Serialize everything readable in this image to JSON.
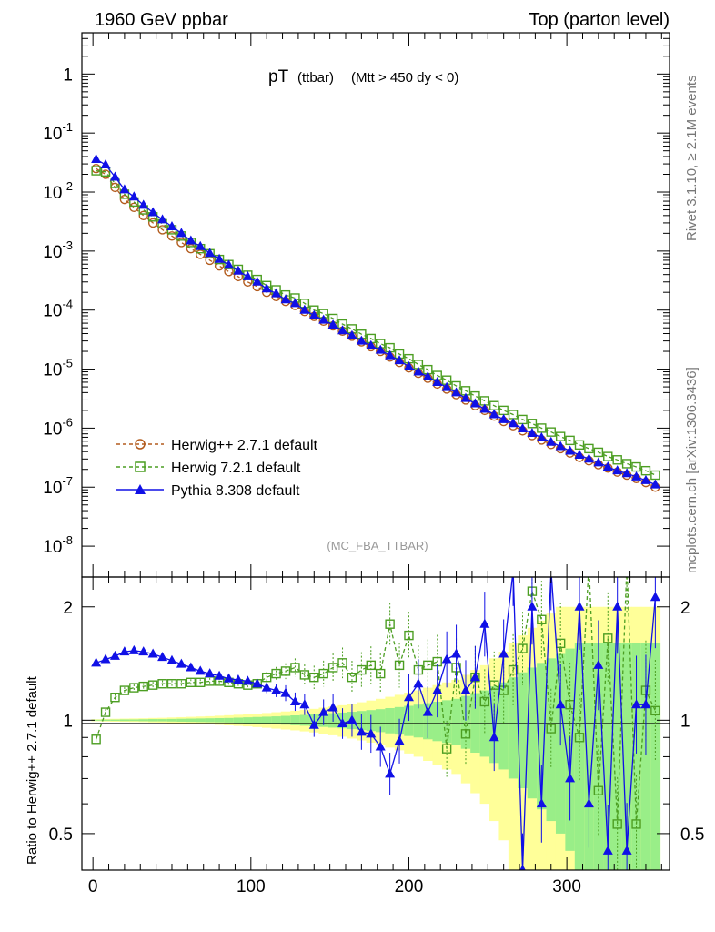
{
  "header": {
    "left": "1960 GeV ppbar",
    "right": "Top (parton level)"
  },
  "side_labels": {
    "rivet": "Rivet 3.1.10, ≥ 2.1M events",
    "mcplots": "mcplots.cern.ch [arXiv:1306.3436]"
  },
  "chart_data": [
    {
      "type": "scatter",
      "title_main": "pT",
      "title_sub": "(ttbar)",
      "title_cut": "(Mtt > 450 dy < 0)",
      "analysis": "(MC_FBA_TTBAR)",
      "xlabel": "",
      "ylabel": "",
      "yscale": "log",
      "ylim": [
        3e-09,
        5
      ],
      "xlim": [
        -7,
        365
      ],
      "ytick_labels": [
        "1",
        "10^-1",
        "10^-2",
        "10^-3",
        "10^-4",
        "10^-5",
        "10^-6",
        "10^-7",
        "10^-8"
      ],
      "legend": [
        {
          "name": "Herwig++ 2.7.1 default",
          "color": "#b35c1e",
          "marker": "circle",
          "style": "dashed"
        },
        {
          "name": "Herwig 7.2.1 default",
          "color": "#4c9e22",
          "marker": "square",
          "style": "dashed"
        },
        {
          "name": "Pythia 8.308 default",
          "color": "#1010e6",
          "marker": "triangle",
          "style": "solid"
        }
      ],
      "series": [
        {
          "name": "Herwig++ 2.7.1 default",
          "x": [
            2,
            8,
            14,
            20,
            26,
            32,
            38,
            44,
            50,
            56,
            62,
            68,
            74,
            80,
            86,
            92,
            98,
            104,
            110,
            116,
            122,
            128,
            134,
            140,
            146,
            152,
            158,
            164,
            170,
            176,
            182,
            188,
            194,
            200,
            206,
            212,
            218,
            224,
            230,
            236,
            242,
            248,
            254,
            260,
            266,
            272,
            278,
            284,
            290,
            296,
            302,
            308,
            314,
            320,
            326,
            332,
            338,
            344,
            350,
            356
          ],
          "y": [
            0.025,
            0.02,
            0.012,
            0.0075,
            0.0055,
            0.004,
            0.003,
            0.0023,
            0.0018,
            0.0014,
            0.0011,
            0.00088,
            0.0007,
            0.00056,
            0.00045,
            0.00037,
            0.0003,
            0.00025,
            0.0002,
            0.00017,
            0.00014,
            0.00012,
            9.5e-05,
            7.8e-05,
            6.5e-05,
            5.4e-05,
            4.4e-05,
            3.6e-05,
            2.9e-05,
            2.4e-05,
            2e-05,
            1.6e-05,
            1.3e-05,
            1.05e-05,
            8.5e-06,
            7e-06,
            5.6e-06,
            4.6e-06,
            3.7e-06,
            3e-06,
            2.4e-06,
            2e-06,
            1.6e-06,
            1.3e-06,
            1.1e-06,
            9e-07,
            7.5e-07,
            6.3e-07,
            5.3e-07,
            4.5e-07,
            3.8e-07,
            3.2e-07,
            2.8e-07,
            2.4e-07,
            2.1e-07,
            1.8e-07,
            1.6e-07,
            1.4e-07,
            1.2e-07,
            1e-07
          ]
        },
        {
          "name": "Herwig 7.2.1 default",
          "x": [
            2,
            8,
            14,
            20,
            26,
            32,
            38,
            44,
            50,
            56,
            62,
            68,
            74,
            80,
            86,
            92,
            98,
            104,
            110,
            116,
            122,
            128,
            134,
            140,
            146,
            152,
            158,
            164,
            170,
            176,
            182,
            188,
            194,
            200,
            206,
            212,
            218,
            224,
            230,
            236,
            242,
            248,
            254,
            260,
            266,
            272,
            278,
            284,
            290,
            296,
            302,
            308,
            314,
            320,
            326,
            332,
            338,
            344,
            350,
            356
          ],
          "y": [
            0.023,
            0.022,
            0.014,
            0.0092,
            0.0068,
            0.005,
            0.0038,
            0.0029,
            0.0023,
            0.0018,
            0.0014,
            0.0011,
            0.0009,
            0.00072,
            0.00059,
            0.00049,
            0.00039,
            0.00033,
            0.00026,
            0.00022,
            0.00018,
            0.00016,
            0.00013,
            0.0001,
            8.7e-05,
            7.2e-05,
            5.8e-05,
            4.8e-05,
            3.9e-05,
            3.3e-05,
            2.7e-05,
            2.3e-05,
            1.8e-05,
            1.5e-05,
            1.2e-05,
            9.8e-06,
            7.8e-06,
            6.5e-06,
            5.2e-06,
            4.3e-06,
            3.5e-06,
            2.9e-06,
            2.4e-06,
            2e-06,
            1.7e-06,
            1.4e-06,
            1.2e-06,
            1e-06,
            8.6e-07,
            7.2e-07,
            6.2e-07,
            5.2e-07,
            4.5e-07,
            3.9e-07,
            3.3e-07,
            2.9e-07,
            2.5e-07,
            2.2e-07,
            1.9e-07,
            1.6e-07
          ]
        },
        {
          "name": "Pythia 8.308 default",
          "x": [
            2,
            8,
            14,
            20,
            26,
            32,
            38,
            44,
            50,
            56,
            62,
            68,
            74,
            80,
            86,
            92,
            98,
            104,
            110,
            116,
            122,
            128,
            134,
            140,
            146,
            152,
            158,
            164,
            170,
            176,
            182,
            188,
            194,
            200,
            206,
            212,
            218,
            224,
            230,
            236,
            242,
            248,
            254,
            260,
            266,
            272,
            278,
            284,
            290,
            296,
            302,
            308,
            314,
            320,
            326,
            332,
            338,
            344,
            350,
            356
          ],
          "y": [
            0.036,
            0.029,
            0.018,
            0.011,
            0.0083,
            0.006,
            0.0045,
            0.0034,
            0.0026,
            0.002,
            0.0015,
            0.0012,
            0.00092,
            0.00073,
            0.00058,
            0.00046,
            0.00037,
            0.0003,
            0.00023,
            0.00019,
            0.00015,
            0.00013,
            0.0001,
            8.1e-05,
            6.8e-05,
            5.6e-05,
            4.5e-05,
            3.7e-05,
            3e-05,
            2.5e-05,
            2.1e-05,
            1.7e-05,
            1.4e-05,
            1.1e-05,
            9e-06,
            7.4e-06,
            6e-06,
            4.9e-06,
            4e-06,
            3.2e-06,
            2.6e-06,
            2.1e-06,
            1.7e-06,
            1.4e-06,
            1.2e-06,
            9.8e-07,
            8.2e-07,
            6.9e-07,
            5.8e-07,
            4.9e-07,
            4.1e-07,
            3.5e-07,
            3e-07,
            2.6e-07,
            2.2e-07,
            1.9e-07,
            1.7e-07,
            1.5e-07,
            1.3e-07,
            1.1e-07
          ]
        }
      ]
    },
    {
      "type": "scatter",
      "title": "",
      "xlabel": "",
      "ylabel": "Ratio to Herwig++ 2.7.1 default",
      "yscale": "log",
      "ylim": [
        0.4,
        2.4
      ],
      "xlim": [
        -7,
        365
      ],
      "x_tick_labels": [
        "0",
        "100",
        "200",
        "300"
      ],
      "y_tick_labels": [
        "0.5",
        "1",
        "2"
      ],
      "reference_line": 1,
      "band_x": [
        2,
        8,
        14,
        20,
        26,
        32,
        38,
        44,
        50,
        56,
        62,
        68,
        74,
        80,
        86,
        92,
        98,
        104,
        110,
        116,
        122,
        128,
        134,
        140,
        146,
        152,
        158,
        164,
        170,
        176,
        182,
        188,
        194,
        200,
        206,
        212,
        218,
        224,
        230,
        236,
        242,
        248,
        254,
        260,
        266,
        272,
        278,
        284,
        290,
        296,
        302,
        308,
        314,
        320,
        326,
        332,
        338,
        344,
        350,
        356
      ],
      "band_green_halfwidth": [
        0.003,
        0.004,
        0.004,
        0.005,
        0.005,
        0.006,
        0.007,
        0.007,
        0.008,
        0.009,
        0.01,
        0.011,
        0.012,
        0.013,
        0.014,
        0.016,
        0.018,
        0.02,
        0.022,
        0.024,
        0.027,
        0.03,
        0.033,
        0.036,
        0.04,
        0.044,
        0.048,
        0.053,
        0.058,
        0.064,
        0.07,
        0.077,
        0.084,
        0.092,
        0.1,
        0.11,
        0.12,
        0.13,
        0.14,
        0.16,
        0.18,
        0.2,
        0.23,
        0.26,
        0.3,
        0.34,
        0.38,
        0.42,
        0.46,
        0.5,
        0.55,
        0.6,
        0.6,
        0.6,
        0.6,
        0.6,
        0.6,
        0.6,
        0.6,
        0.6
      ],
      "band_yellow_halfwidth": [
        0.006,
        0.008,
        0.009,
        0.01,
        0.011,
        0.012,
        0.014,
        0.015,
        0.017,
        0.019,
        0.021,
        0.023,
        0.025,
        0.028,
        0.031,
        0.034,
        0.037,
        0.041,
        0.045,
        0.05,
        0.055,
        0.06,
        0.066,
        0.072,
        0.08,
        0.088,
        0.096,
        0.106,
        0.116,
        0.128,
        0.14,
        0.154,
        0.168,
        0.184,
        0.2,
        0.22,
        0.24,
        0.26,
        0.28,
        0.32,
        0.36,
        0.4,
        0.46,
        0.52,
        0.6,
        0.68,
        0.76,
        0.84,
        0.92,
        1.0,
        1.0,
        1.0,
        1.0,
        1.0,
        1.0,
        1.0,
        1.0,
        1.0,
        1.0,
        1.0
      ],
      "series": [
        {
          "name": "Herwig 7.2.1 default",
          "x": [
            2,
            8,
            14,
            20,
            26,
            32,
            38,
            44,
            50,
            56,
            62,
            68,
            74,
            80,
            86,
            92,
            98,
            104,
            110,
            116,
            122,
            128,
            134,
            140,
            146,
            152,
            158,
            164,
            170,
            176,
            182,
            188,
            194,
            200,
            206,
            212,
            218,
            224,
            230,
            236,
            242,
            248,
            254,
            260,
            266,
            272,
            278,
            284,
            290,
            296,
            302,
            308,
            314,
            320,
            326,
            332,
            338,
            344,
            350,
            356
          ],
          "y": [
            0.89,
            1.05,
            1.15,
            1.2,
            1.22,
            1.23,
            1.24,
            1.25,
            1.25,
            1.25,
            1.26,
            1.26,
            1.27,
            1.27,
            1.26,
            1.25,
            1.24,
            1.25,
            1.3,
            1.33,
            1.35,
            1.38,
            1.32,
            1.3,
            1.33,
            1.38,
            1.42,
            1.3,
            1.36,
            1.4,
            1.33,
            1.8,
            1.4,
            1.68,
            1.36,
            1.4,
            1.43,
            0.84,
            1.38,
            0.92,
            1.3,
            1.12,
            1.24,
            1.2,
            1.36,
            1.55,
            2.2,
            1.85,
            0.95,
            1.6,
            1.1,
            0.9,
            2.6,
            0.65,
            1.65,
            0.53,
            2.6,
            0.53,
            1.2,
            1.06
          ]
        },
        {
          "name": "Pythia 8.308 default",
          "x": [
            2,
            8,
            14,
            20,
            26,
            32,
            38,
            44,
            50,
            56,
            62,
            68,
            74,
            80,
            86,
            92,
            98,
            104,
            110,
            116,
            122,
            128,
            134,
            140,
            146,
            152,
            158,
            164,
            170,
            176,
            182,
            188,
            194,
            200,
            206,
            212,
            218,
            224,
            230,
            236,
            242,
            248,
            254,
            260,
            266,
            272,
            278,
            284,
            290,
            296,
            302,
            308,
            314,
            320,
            326,
            332,
            338,
            344,
            350,
            356
          ],
          "y": [
            1.42,
            1.45,
            1.48,
            1.52,
            1.53,
            1.52,
            1.5,
            1.47,
            1.44,
            1.41,
            1.38,
            1.35,
            1.33,
            1.31,
            1.29,
            1.28,
            1.27,
            1.25,
            1.22,
            1.2,
            1.18,
            1.12,
            1.1,
            0.97,
            1.05,
            1.08,
            0.98,
            1.0,
            0.93,
            0.92,
            0.85,
            0.72,
            0.88,
            1.15,
            1.25,
            1.05,
            1.2,
            1.45,
            1.5,
            1.2,
            1.3,
            1.8,
            0.9,
            1.5,
            2.5,
            0.4,
            2.0,
            0.6,
            2.5,
            1.1,
            0.7,
            2.0,
            0.6,
            1.4,
            0.45,
            2.0,
            0.45,
            1.1,
            1.1,
            2.12
          ]
        }
      ]
    }
  ]
}
